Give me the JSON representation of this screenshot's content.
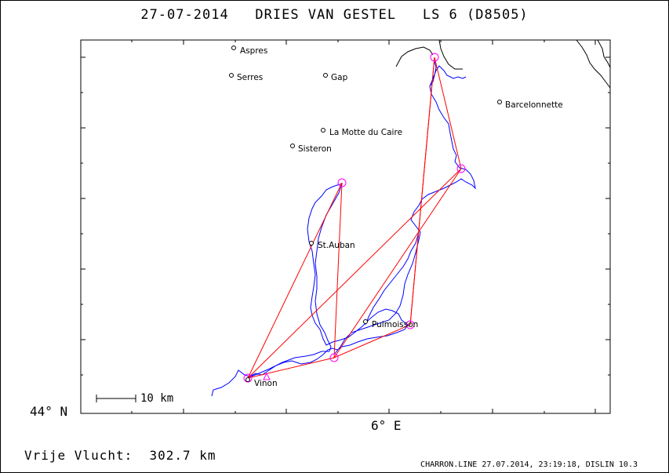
{
  "title": "27-07-2014   DRIES VAN GESTEL   LS 6 (D8505)",
  "map": {
    "lat_label": "44° N",
    "lon_label": "6° E",
    "scale_label": "10 km",
    "towns": [
      {
        "name": "Aspres"
      },
      {
        "name": "Serres"
      },
      {
        "name": "Gap"
      },
      {
        "name": "Barcelonnette"
      },
      {
        "name": "La Motte du Caire"
      },
      {
        "name": "Sisteron"
      },
      {
        "name": "St.Auban"
      },
      {
        "name": "Puimoisson"
      },
      {
        "name": "Vinon"
      }
    ],
    "colors": {
      "track": "#0000ff",
      "task_line": "#ff0000",
      "turnpoint": "#ff00ff",
      "frame": "#000000"
    }
  },
  "distance_text": "Vrije Vlucht:  302.7 km",
  "footer_text": "CHARRON.LINE 27.07.2014, 23:19:18, DISLIN 10.3"
}
